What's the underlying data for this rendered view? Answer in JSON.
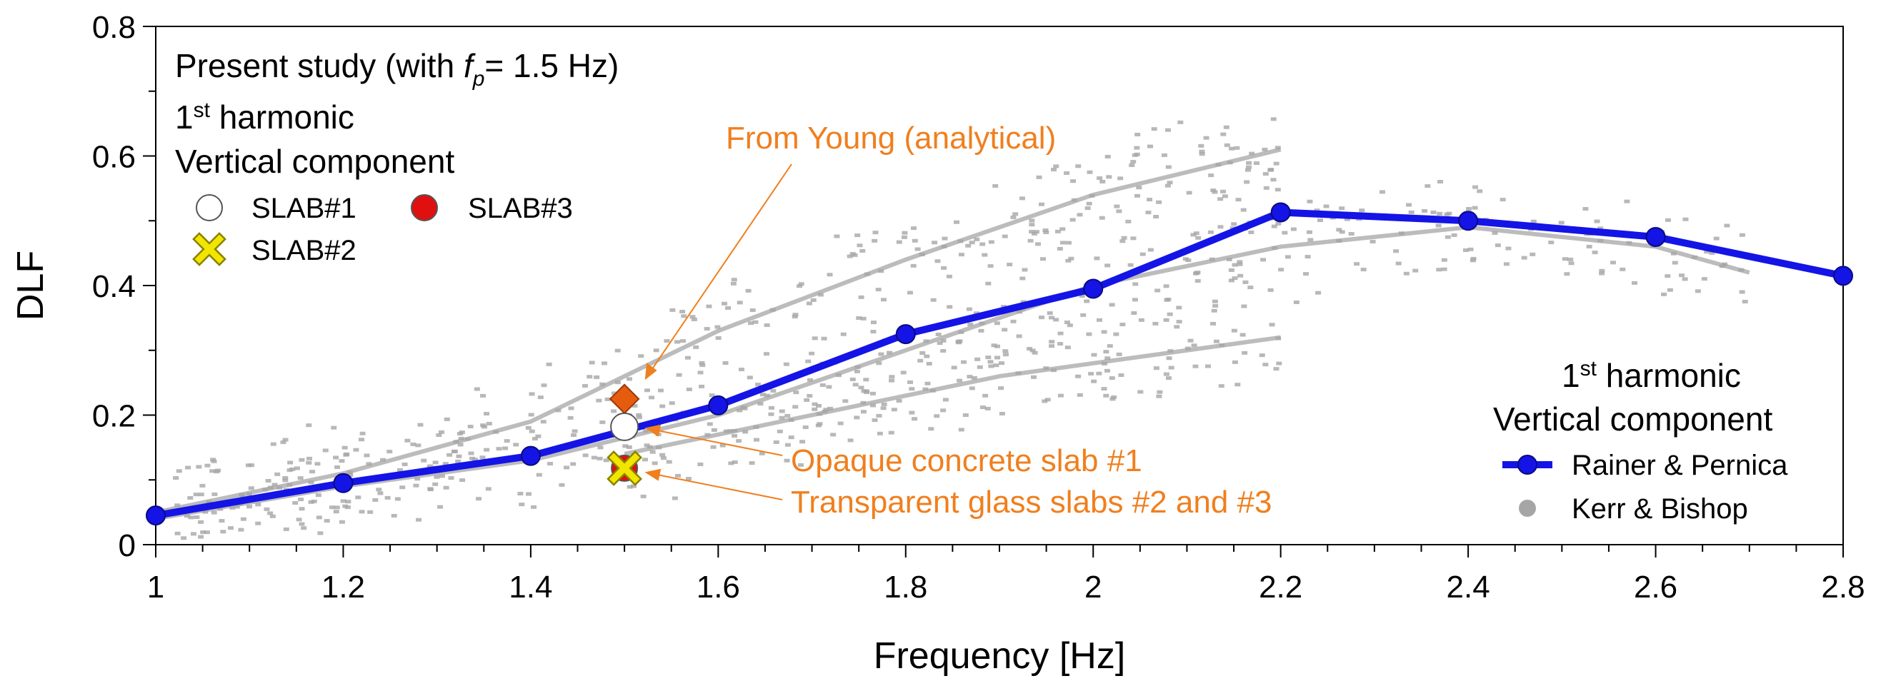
{
  "chart_data": {
    "type": "line",
    "xlabel": "Frequency  [Hz]",
    "ylabel": "DLF",
    "xlim": [
      1,
      2.8
    ],
    "ylim": [
      0,
      0.8
    ],
    "x_ticks": [
      1,
      1.2,
      1.4,
      1.6,
      1.8,
      2,
      2.2,
      2.4,
      2.6,
      2.8
    ],
    "x_tick_labels": [
      "1",
      "1.2",
      "1.4",
      "1.6",
      "1.8",
      "2",
      "2.2",
      "2.4",
      "2.6",
      "2.8"
    ],
    "y_ticks": [
      0,
      0.2,
      0.4,
      0.6,
      0.8
    ],
    "y_tick_labels": [
      "0",
      "0.2",
      "0.4",
      "0.6",
      "0.8"
    ],
    "series": [
      {
        "name": "Rainer & Pernica",
        "color": "#1414e6",
        "x": [
          1,
          1.2,
          1.4,
          1.6,
          1.8,
          2,
          2.2,
          2.4,
          2.6,
          2.8
        ],
        "y": [
          0.045,
          0.095,
          0.137,
          0.215,
          0.325,
          0.395,
          0.513,
          0.5,
          0.475,
          0.415
        ]
      }
    ],
    "scatter_background": {
      "name": "Kerr & Bishop",
      "color": "#a6a6a6",
      "trend_upper": {
        "x": [
          1.0,
          1.2,
          1.4,
          1.6,
          1.8,
          2.0,
          2.2
        ],
        "y": [
          0.05,
          0.11,
          0.19,
          0.33,
          0.44,
          0.54,
          0.61
        ]
      },
      "trend_middle": {
        "x": [
          1.0,
          1.2,
          1.4,
          1.6,
          1.8,
          2.0,
          2.2,
          2.4,
          2.6,
          2.7
        ],
        "y": [
          0.04,
          0.09,
          0.13,
          0.2,
          0.3,
          0.4,
          0.46,
          0.49,
          0.46,
          0.42
        ]
      },
      "trend_lower": {
        "x": [
          1.5,
          1.7,
          1.9,
          2.1,
          2.2
        ],
        "y": [
          0.14,
          0.2,
          0.26,
          0.3,
          0.32
        ]
      }
    },
    "present_study": {
      "slab1": {
        "label": "SLAB#1",
        "x": 1.5,
        "y": 0.182
      },
      "slab2": {
        "label": "SLAB#2",
        "x": 1.5,
        "y": 0.118
      },
      "slab3": {
        "label": "SLAB#3",
        "x": 1.5,
        "y": 0.118
      },
      "young": {
        "label": "From Young (analytical)",
        "x": 1.5,
        "y": 0.225
      }
    },
    "annotations": {
      "young": "From Young (analytical)",
      "opaque": "Opaque concrete slab #1",
      "transparent": "Transparent glass slabs #2 and #3"
    },
    "legend_top": {
      "title_main": "Present study (with ",
      "title_f": "f",
      "title_sub": "p",
      "title_end": "= 1.5 Hz)",
      "harmonic_num": "1",
      "harmonic_sup": "st",
      "harmonic_word": " harmonic",
      "component": "Vertical component",
      "slab1": "SLAB#1",
      "slab2": "SLAB#2",
      "slab3": "SLAB#3"
    },
    "legend_bottom": {
      "harmonic_num": "1",
      "harmonic_sup": "st",
      "harmonic_word": " harmonic",
      "component": "Vertical component",
      "series1": "Rainer & Pernica",
      "series2": "Kerr & Bishop"
    }
  },
  "colors": {
    "line": "#1414e6",
    "scatter": "#a6a6a6",
    "annotation": "#f07f1e",
    "young": "#e65c0f",
    "slab3": "#e01010",
    "slab2": "#f2e600"
  }
}
